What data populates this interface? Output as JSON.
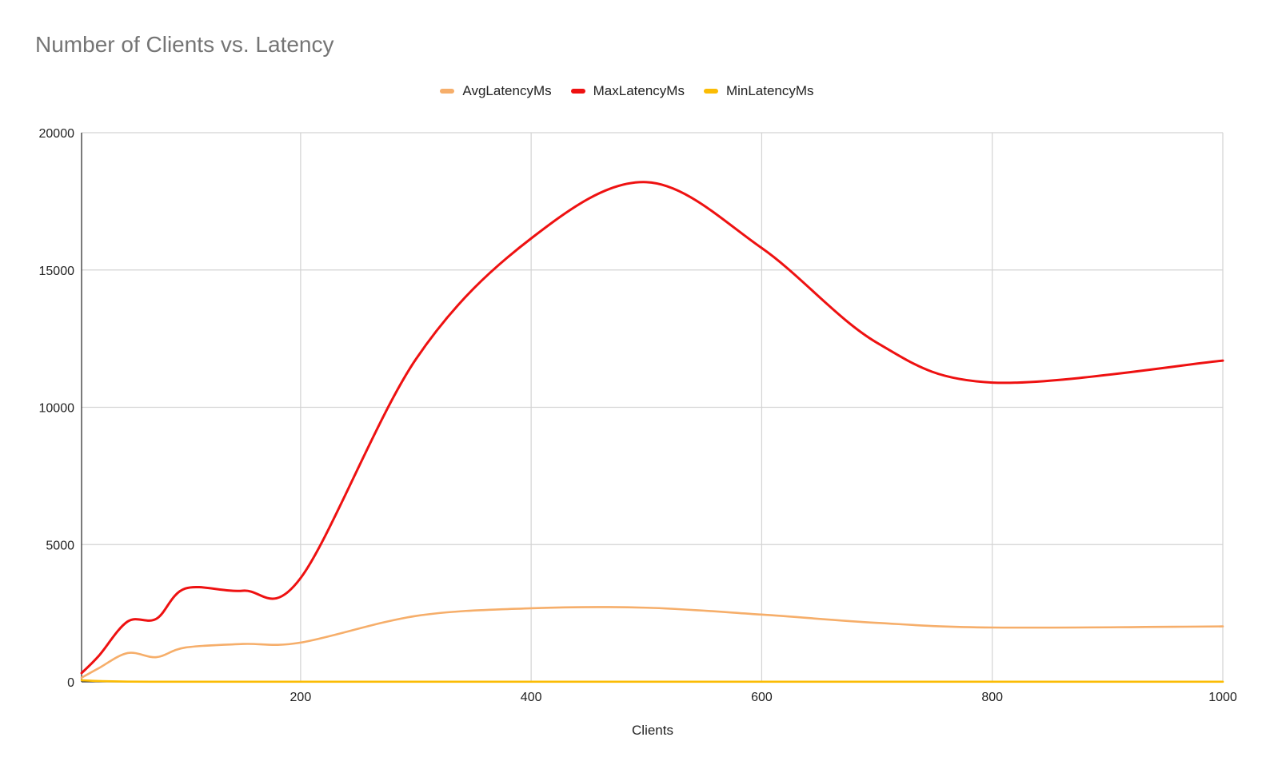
{
  "chart_data": {
    "type": "line",
    "title": "Number of Clients vs. Latency",
    "xlabel": "Clients",
    "ylabel": "",
    "xlim": [
      10,
      1000
    ],
    "ylim": [
      0,
      20000
    ],
    "x_ticks": [
      200,
      400,
      600,
      800,
      1000
    ],
    "y_ticks": [
      0,
      5000,
      10000,
      15000,
      20000
    ],
    "grid": true,
    "legend_position": "top",
    "x": [
      10,
      25,
      50,
      75,
      100,
      150,
      200,
      300,
      400,
      500,
      600,
      700,
      800,
      1000
    ],
    "series": [
      {
        "name": "AvgLatencyMs",
        "color": "#f6ae6a",
        "values": [
          150,
          500,
          1050,
          900,
          1250,
          1380,
          1430,
          2400,
          2680,
          2700,
          2450,
          2150,
          1980,
          2020
        ]
      },
      {
        "name": "MaxLatencyMs",
        "color": "#ee1111",
        "values": [
          320,
          950,
          2200,
          2300,
          3400,
          3320,
          3780,
          11750,
          16150,
          18200,
          15800,
          12350,
          10900,
          11700
        ]
      },
      {
        "name": "MinLatencyMs",
        "color": "#fbbc04",
        "values": [
          60,
          30,
          10,
          5,
          5,
          5,
          5,
          5,
          5,
          5,
          5,
          5,
          5,
          5
        ]
      }
    ]
  }
}
